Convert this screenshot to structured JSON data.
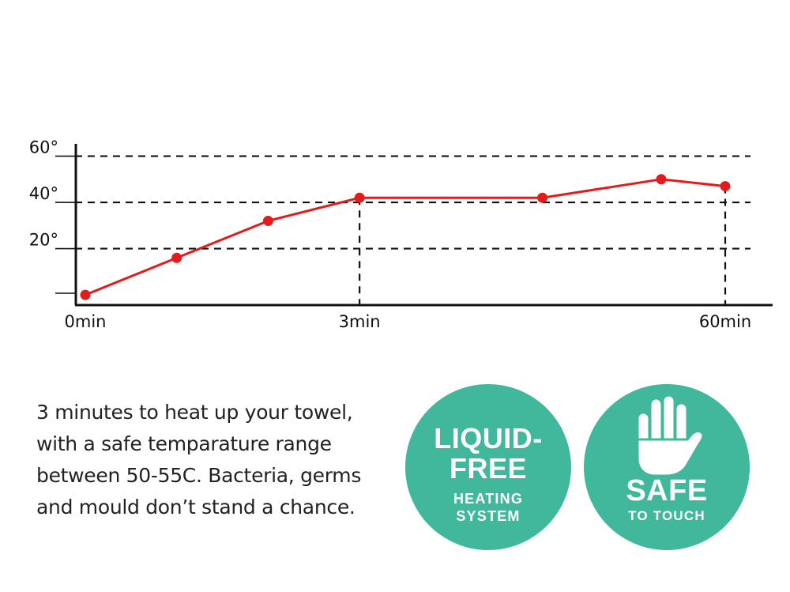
{
  "chart_data": {
    "type": "line",
    "x_tick_labels": [
      {
        "label": "0min",
        "index": 0
      },
      {
        "label": "3min",
        "index": 3
      },
      {
        "label": "60min",
        "index": 7
      }
    ],
    "y_tick_labels": [
      "20°",
      "40°",
      "60°"
    ],
    "y_ticks": [
      20,
      40,
      60
    ],
    "ylim": [
      -1,
      66
    ],
    "series": [
      {
        "color": "#e31b1b",
        "values": [
          0,
          16,
          32,
          42,
          42,
          50,
          47
        ]
      }
    ],
    "point_x_positions": [
      0,
      1,
      2,
      3,
      5,
      6.3,
      7
    ],
    "xlim": [
      0,
      7
    ],
    "grid": "dashed horizontal at y ticks; dashed vertical drop lines at 3min and 60min"
  },
  "description": {
    "lines": [
      "3 minutes to heat up your towel,",
      "with a safe temparature range",
      "between 50-55C. Bacteria, germs",
      "and mould don’t stand a chance."
    ]
  },
  "badges": {
    "liquid_free": {
      "line1": "LIQUID-",
      "line2": "FREE",
      "line3": "HEATING",
      "line4": "SYSTEM"
    },
    "safe": {
      "icon": "hand-icon",
      "line1": "SAFE",
      "line2": "TO TOUCH"
    }
  },
  "colors": {
    "accent": "#41b79b",
    "line": "#e31b1b"
  }
}
